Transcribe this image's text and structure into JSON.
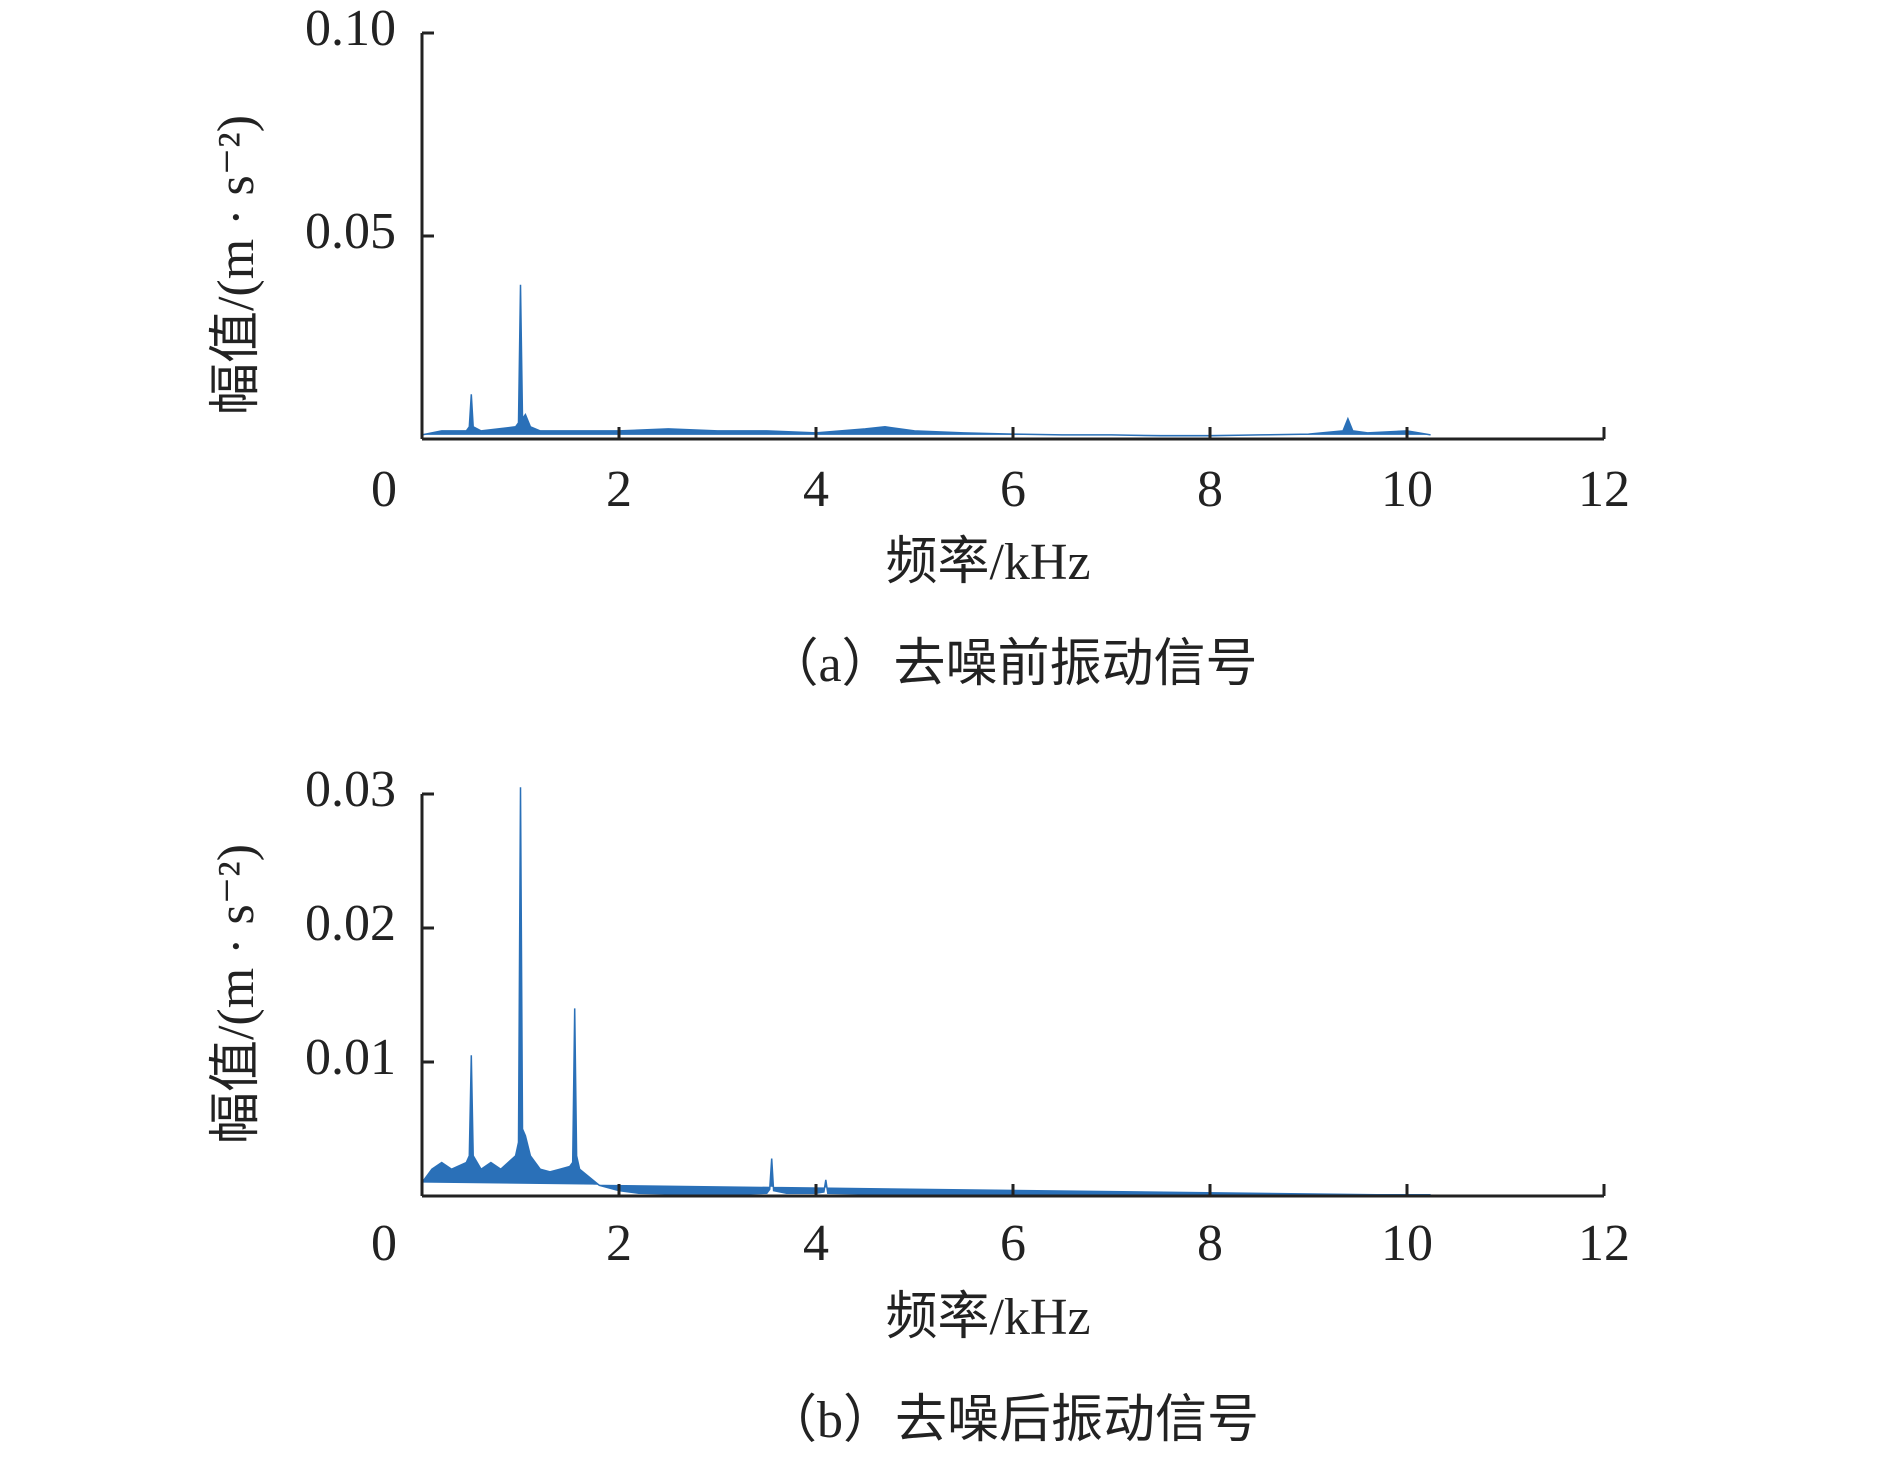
{
  "chart_data": [
    {
      "type": "area",
      "caption": "（a）去噪前振动信号",
      "xlabel": "频率/kHz",
      "ylabel": "幅值/(m · s⁻²)",
      "color": "#2a70b8",
      "xlim": [
        0,
        12
      ],
      "xticks": [
        0,
        2,
        4,
        6,
        8,
        10,
        12
      ],
      "ylim": [
        0,
        0.1
      ],
      "yticks": [
        0.05,
        {
          "value": 0.1,
          "label": "0.10"
        }
      ],
      "x": [
        0,
        0.2,
        0.45,
        0.48,
        0.5,
        0.52,
        0.6,
        0.95,
        0.98,
        1.0,
        1.02,
        1.05,
        1.1,
        1.2,
        1.5,
        2.0,
        2.5,
        3.0,
        3.5,
        4.0,
        4.5,
        4.7,
        5.0,
        5.5,
        6.0,
        6.5,
        7.0,
        7.5,
        8.0,
        8.5,
        9.0,
        9.35,
        9.4,
        9.45,
        9.6,
        10.0,
        10.24
      ],
      "values": [
        0.001,
        0.002,
        0.002,
        0.003,
        0.011,
        0.003,
        0.002,
        0.003,
        0.004,
        0.038,
        0.005,
        0.006,
        0.003,
        0.002,
        0.002,
        0.002,
        0.0025,
        0.002,
        0.002,
        0.0015,
        0.0025,
        0.003,
        0.002,
        0.0015,
        0.0012,
        0.001,
        0.001,
        0.0008,
        0.0008,
        0.001,
        0.0012,
        0.002,
        0.005,
        0.002,
        0.0015,
        0.002,
        0.001
      ]
    },
    {
      "type": "area",
      "caption": "（b）去噪后振动信号",
      "xlabel": "频率/kHz",
      "ylabel": "幅值/(m · s⁻²)",
      "color": "#2a70b8",
      "xlim": [
        0,
        12
      ],
      "xticks": [
        0,
        2,
        4,
        6,
        8,
        10,
        12
      ],
      "ylim": [
        0,
        0.03
      ],
      "yticks": [
        0.01,
        0.02,
        0.03
      ],
      "x": [
        0,
        0.1,
        0.2,
        0.3,
        0.45,
        0.48,
        0.5,
        0.52,
        0.6,
        0.7,
        0.8,
        0.95,
        0.98,
        1.0,
        1.02,
        1.05,
        1.1,
        1.2,
        1.3,
        1.4,
        1.5,
        1.53,
        1.55,
        1.57,
        1.6,
        1.8,
        2.0,
        2.2,
        3.0,
        3.5,
        3.53,
        3.55,
        3.57,
        3.7,
        4.0,
        4.08,
        4.1,
        4.12,
        5.0,
        6.0,
        7.0,
        8.0,
        9.0,
        10.24
      ],
      "values": [
        0.001,
        0.002,
        0.0025,
        0.002,
        0.0025,
        0.003,
        0.0105,
        0.003,
        0.002,
        0.0025,
        0.002,
        0.003,
        0.004,
        0.0305,
        0.005,
        0.0045,
        0.003,
        0.002,
        0.0018,
        0.002,
        0.0022,
        0.0025,
        0.014,
        0.003,
        0.002,
        0.0008,
        0.0004,
        0.0002,
        0.0001,
        0.0002,
        0.0005,
        0.0028,
        0.0004,
        0.0002,
        0.0002,
        0.0003,
        0.0012,
        0.0002,
        0.0001,
        0.0001,
        0.0001,
        0.0001,
        0.0001,
        0.0001
      ]
    }
  ]
}
